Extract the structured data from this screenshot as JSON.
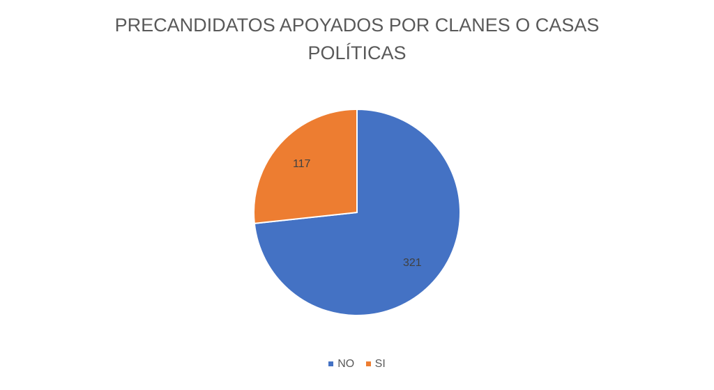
{
  "chart_data": {
    "type": "pie",
    "title": "PRECANDIDATOS APOYADOS POR CLANES O CASAS POLÍTICAS",
    "title_lines": [
      "PRECANDIDATOS APOYADOS POR CLANES O CASAS",
      "POLÍTICAS"
    ],
    "categories": [
      "NO",
      "SI"
    ],
    "values": [
      321,
      117
    ],
    "data_labels": [
      "321",
      "117"
    ],
    "colors": [
      "#4472C4",
      "#ED7D31"
    ],
    "start_angle": "12 o'clock, clockwise",
    "legend_position": "bottom"
  }
}
